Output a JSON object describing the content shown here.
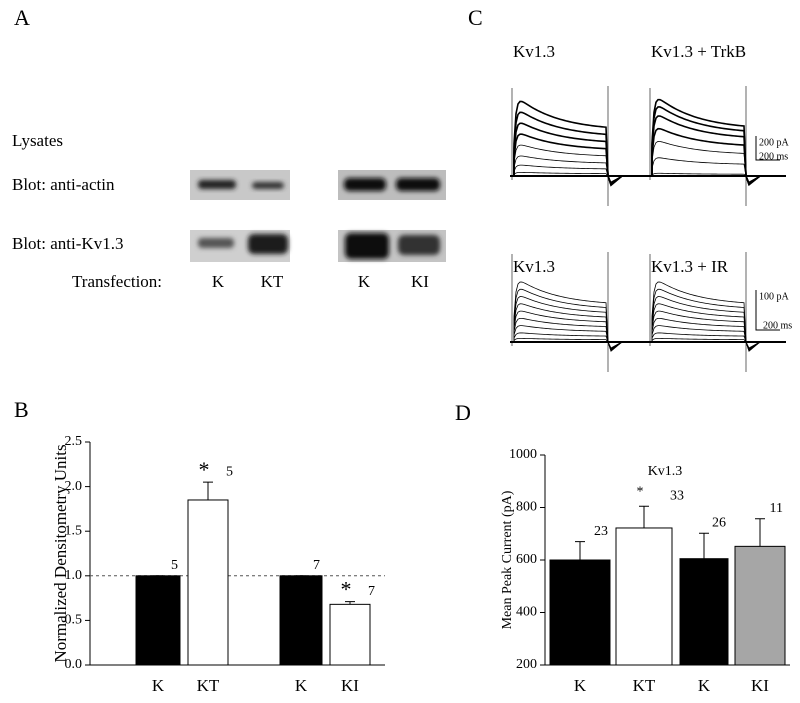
{
  "panel_labels": [
    "A",
    "B",
    "C",
    "D"
  ],
  "blots": {
    "title": "Lysates",
    "rows": [
      "Blot:  anti-actin",
      "Blot:  anti-Kv1.3"
    ],
    "lane_title": "Transfection:",
    "lanes": [
      "K",
      "KT",
      "K",
      "KI"
    ]
  },
  "traces": {
    "panels": [
      "Kv1.3",
      "Kv1.3 + TrkB",
      "Kv1.3",
      "Kv1.3 + IR"
    ],
    "scale_bars": [
      [
        "200 pA",
        "200 ms"
      ],
      [
        "100 pA",
        "200 ms"
      ]
    ]
  },
  "chart_data": [
    {
      "type": "bar",
      "ylabel": "Normalized Densitometry Units",
      "categories": [
        "K",
        "KT",
        "K",
        "KI"
      ],
      "values": [
        1.0,
        1.85,
        1.0,
        0.68
      ],
      "errors": [
        0,
        0.2,
        0,
        0.03
      ],
      "colors": [
        "#000000",
        "#ffffff",
        "#000000",
        "#ffffff"
      ],
      "n": [
        5,
        5,
        7,
        7
      ],
      "significant": [
        false,
        true,
        false,
        true
      ],
      "significance_marker": "*",
      "reference_line": 1,
      "ylim": [
        0,
        2.5
      ],
      "yticks": [
        {
          "value": 0,
          "label": "0.0"
        },
        0.5,
        {
          "value": 1,
          "label": "1.0"
        },
        1.5,
        {
          "value": 2,
          "label": "2.0"
        },
        2.5
      ]
    },
    {
      "type": "bar",
      "title": "Kv1.3",
      "ylabel": "Mean Peak Current (pA)",
      "categories": [
        "K",
        "KT",
        "K",
        "KI"
      ],
      "values": [
        600,
        722,
        605,
        652
      ],
      "errors": [
        70,
        83,
        97,
        105
      ],
      "colors": [
        "#000000",
        "#ffffff",
        "#000000",
        "#a6a6a6"
      ],
      "n": [
        23,
        33,
        26,
        11
      ],
      "significant": [
        false,
        true,
        false,
        false
      ],
      "significance_marker": "*",
      "ylim": [
        200,
        1000
      ],
      "yticks": [
        200,
        400,
        600,
        800,
        1000
      ]
    }
  ]
}
